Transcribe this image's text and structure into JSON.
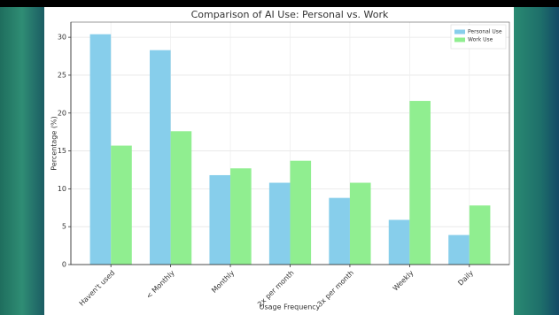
{
  "chart_data": {
    "type": "bar",
    "title": "Comparison of AI Use: Personal vs. Work",
    "x_label": "Usage Frequency",
    "y_label": "Percentage (%)",
    "categories": [
      "Haven't used",
      "< Monthly",
      "Monthly",
      "2x per month",
      "3x per month",
      "Weekly",
      "Daily"
    ],
    "series": [
      {
        "name": "Personal Use",
        "color": "#87ceeb",
        "values": [
          30.4,
          28.3,
          11.8,
          10.8,
          8.8,
          5.9,
          3.9
        ]
      },
      {
        "name": "Work Use",
        "color": "#90ee90",
        "values": [
          15.7,
          17.6,
          12.7,
          13.7,
          10.8,
          21.6,
          7.8
        ]
      }
    ],
    "ylim": [
      0,
      32
    ],
    "yticks": [
      0,
      5,
      10,
      15,
      20,
      25,
      30
    ],
    "grid": true,
    "legend": "upper right"
  }
}
